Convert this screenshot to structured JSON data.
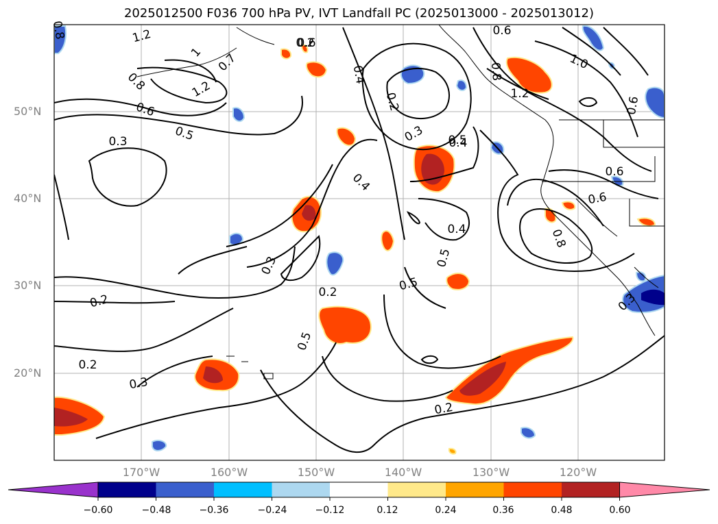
{
  "title": "2025012500 F036 700 hPa PV, IVT Landfall PC (2025013000 - 2025013012)",
  "lat_labels": [
    "50°N",
    "40°N",
    "30°N",
    "20°N"
  ],
  "lon_labels": [
    "170°W",
    "160°W",
    "150°W",
    "140°W",
    "130°W",
    "120°W"
  ],
  "contour_labels": [
    "0.8",
    "1.2",
    "1",
    "0.7",
    "0.6",
    "1.2",
    "0.8",
    "0.6",
    "0.3",
    "0.5",
    "0.4",
    "0.3",
    "0.2",
    "0.2",
    "0.3",
    "0.4",
    "0.2",
    "0.3",
    "0.5",
    "0.4",
    "0.5",
    "0.4",
    "0.5",
    "0.2",
    "0.6",
    "1.2",
    "1.0",
    "0.6",
    "0.6",
    "0.5",
    "0.8",
    "0.6",
    "0.8",
    "0.3",
    "0.2",
    "0.2"
  ],
  "colorbar": {
    "ticks": [
      "−0.60",
      "−0.48",
      "−0.36",
      "−0.24",
      "−0.12",
      "0.12",
      "0.24",
      "0.36",
      "0.48",
      "0.60"
    ],
    "colors": [
      "#9932cc",
      "#00008b",
      "#3a5fcd",
      "#00bfff",
      "#add8f0",
      "#ffffff",
      "#ffe98a",
      "#ffa500",
      "#ff4500",
      "#b22222",
      "#ff89a8"
    ]
  }
}
